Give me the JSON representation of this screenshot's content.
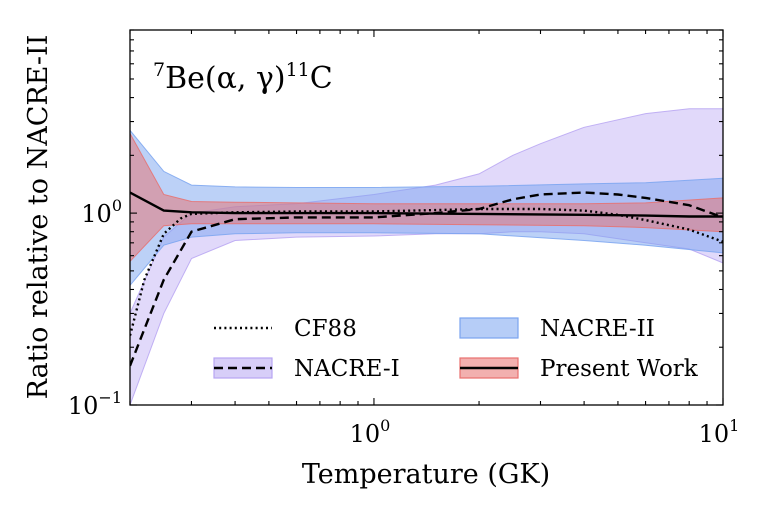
{
  "chart_data": {
    "type": "line",
    "annotation": {
      "base": "Be",
      "pre": "7",
      "reaction": "(α, γ)",
      "sup": "11",
      "product": "C"
    },
    "xlabel": "Temperature (GK)",
    "ylabel": "Ratio relative to NACRE-II",
    "x_scale": "log",
    "y_scale": "log",
    "xlim": [
      0.2,
      10
    ],
    "ylim": [
      0.1,
      9
    ],
    "x_ticks": [
      {
        "value": 1,
        "base": "10",
        "exp": "0"
      },
      {
        "value": 10,
        "base": "10",
        "exp": "1"
      }
    ],
    "y_ticks": [
      {
        "value": 0.1,
        "base": "10",
        "exp": "−1"
      },
      {
        "value": 1,
        "base": "10",
        "exp": "0"
      }
    ],
    "legend_placement": "bottom",
    "bands": [
      {
        "name": "NACRE-I",
        "fill": "#b7a5f2",
        "opacity": 0.42,
        "x": [
          0.2,
          0.25,
          0.3,
          0.4,
          0.6,
          1.0,
          1.5,
          2.0,
          2.5,
          3.0,
          4.0,
          6.0,
          8.0,
          10.0
        ],
        "upper": [
          0.3,
          0.75,
          1.0,
          1.08,
          1.12,
          1.25,
          1.4,
          1.6,
          2.0,
          2.3,
          2.8,
          3.3,
          3.5,
          3.5
        ],
        "lower": [
          0.1,
          0.3,
          0.58,
          0.72,
          0.75,
          0.76,
          0.78,
          0.78,
          0.8,
          0.8,
          0.78,
          0.7,
          0.65,
          0.55
        ]
      },
      {
        "name": "NACRE-II",
        "fill": "#7aa4f0",
        "opacity": 0.5,
        "x": [
          0.2,
          0.25,
          0.3,
          0.4,
          0.6,
          1.0,
          2.0,
          4.0,
          6.0,
          10.0
        ],
        "upper": [
          2.7,
          1.65,
          1.4,
          1.37,
          1.36,
          1.36,
          1.38,
          1.42,
          1.44,
          1.52
        ],
        "lower": [
          0.42,
          0.68,
          0.75,
          0.78,
          0.79,
          0.79,
          0.78,
          0.72,
          0.68,
          0.62
        ]
      },
      {
        "name": "Present Work",
        "fill": "#e8706e",
        "opacity": 0.5,
        "x": [
          0.2,
          0.25,
          0.3,
          0.4,
          0.6,
          1.0,
          2.0,
          4.0,
          6.0,
          10.0
        ],
        "upper": [
          2.6,
          1.25,
          1.15,
          1.14,
          1.13,
          1.12,
          1.12,
          1.12,
          1.13,
          1.2
        ],
        "lower": [
          0.56,
          0.86,
          0.88,
          0.88,
          0.88,
          0.88,
          0.87,
          0.86,
          0.84,
          0.8
        ]
      }
    ],
    "series": [
      {
        "name": "CF88",
        "style": "dotted",
        "x": [
          0.2,
          0.22,
          0.25,
          0.28,
          0.3,
          0.4,
          0.6,
          1.0,
          2.0,
          3.0,
          4.0,
          5.0,
          6.0,
          8.0,
          10.0
        ],
        "y": [
          0.23,
          0.45,
          0.78,
          0.94,
          0.99,
          1.01,
          1.02,
          1.02,
          1.05,
          1.05,
          1.03,
          0.98,
          0.92,
          0.82,
          0.71
        ]
      },
      {
        "name": "NACRE-I",
        "style": "dashed",
        "x": [
          0.2,
          0.25,
          0.3,
          0.4,
          0.6,
          1.0,
          1.5,
          2.0,
          2.5,
          3.0,
          4.0,
          5.0,
          6.0,
          8.0,
          10.0
        ],
        "y": [
          0.16,
          0.45,
          0.8,
          0.93,
          0.95,
          0.95,
          1.0,
          1.05,
          1.18,
          1.25,
          1.28,
          1.25,
          1.2,
          1.1,
          0.95
        ]
      },
      {
        "name": "Present Work",
        "style": "solid",
        "x": [
          0.2,
          0.25,
          0.3,
          0.4,
          0.6,
          1.0,
          2.0,
          4.0,
          6.0,
          8.0,
          10.0
        ],
        "y": [
          1.28,
          1.03,
          1.01,
          1.0,
          1.0,
          1.0,
          0.99,
          0.98,
          0.97,
          0.96,
          0.96
        ]
      }
    ],
    "legend": [
      {
        "label": "CF88",
        "line": "dotted",
        "patch": null
      },
      {
        "label": "NACRE-II",
        "line": null,
        "patch": "#7aa4f0"
      },
      {
        "label": "NACRE-I",
        "line": "dashed",
        "patch": "#b7a5f2"
      },
      {
        "label": "Present Work",
        "line": "solid",
        "patch": "#e8706e"
      }
    ]
  }
}
